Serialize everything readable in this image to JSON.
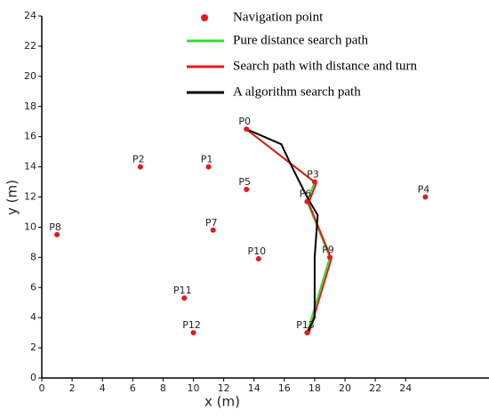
{
  "chart_data": {
    "type": "scatter",
    "xlabel": "x (m)",
    "ylabel": "y (m)",
    "xlim": [
      0,
      29.5
    ],
    "ylim": [
      0,
      24
    ],
    "xticks": [
      0,
      2,
      4,
      6,
      8,
      10,
      12,
      14,
      16,
      18,
      20,
      22,
      24
    ],
    "yticks": [
      0,
      2,
      4,
      6,
      8,
      10,
      12,
      14,
      16,
      18,
      20,
      22,
      24
    ],
    "legend": "upper right",
    "points": {
      "name": "Navigation point",
      "color": "#e41a1c",
      "labels": [
        "P0",
        "P1",
        "P2",
        "P3",
        "P4",
        "P5",
        "P6",
        "P7",
        "P8",
        "P9",
        "P10",
        "P11",
        "P12",
        "P13"
      ],
      "x": [
        13.5,
        11,
        6.5,
        18,
        25.3,
        13.5,
        17.5,
        11.3,
        1,
        19,
        14.3,
        9.4,
        10,
        17.5
      ],
      "y": [
        16.5,
        14,
        14,
        13,
        12,
        12.5,
        11.7,
        9.8,
        9.5,
        8,
        7.9,
        5.3,
        3,
        3
      ]
    },
    "series": [
      {
        "name": "Pure distance search path",
        "color": "#33dd33",
        "x": [
          13.5,
          18,
          17.5,
          19,
          17.5
        ],
        "y": [
          16.5,
          13,
          11.7,
          8,
          3
        ]
      },
      {
        "name": "Search path with distance and turn",
        "color": "#e41a1c",
        "x": [
          13.6,
          18.1,
          17.6,
          19.1,
          17.6
        ],
        "y": [
          16.4,
          12.9,
          11.6,
          7.9,
          2.9
        ]
      },
      {
        "name": "A algorithm search path",
        "color": "#000000",
        "x": [
          13.5,
          15.8,
          16.5,
          17.5,
          18.2,
          18,
          18,
          17.5
        ],
        "y": [
          16.5,
          15.5,
          14,
          12,
          10.8,
          8,
          4,
          3
        ]
      }
    ]
  }
}
